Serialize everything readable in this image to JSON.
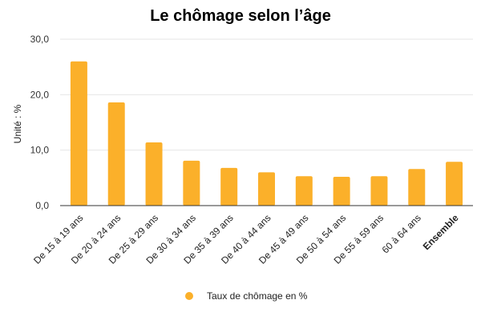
{
  "chart_data": {
    "type": "bar",
    "title": "Le chômage selon l’âge",
    "ylabel": "Unité : %",
    "xlabel": "",
    "ylim": [
      0,
      30
    ],
    "yticks": [
      "0,0",
      "10,0",
      "20,0",
      "30,0"
    ],
    "grid": true,
    "legend_position": "bottom",
    "bar_color": "#FBB02A",
    "categories": [
      "De 15 à 19 ans",
      "De 20 à 24 ans",
      "De 25 à 29 ans",
      "De 30 à 34 ans",
      "De 35 à 39 ans",
      "De 40 à 44 ans",
      "De 45 à 49 ans",
      "De 50 à 54 ans",
      "De 55 à 59 ans",
      "60 à 64 ans",
      "Ensemble"
    ],
    "bold_categories": [
      "Ensemble"
    ],
    "series": [
      {
        "name": "Taux de chômage en %",
        "values": [
          26.0,
          18.6,
          11.4,
          8.1,
          6.8,
          6.0,
          5.3,
          5.2,
          5.3,
          6.6,
          7.9
        ]
      }
    ]
  }
}
